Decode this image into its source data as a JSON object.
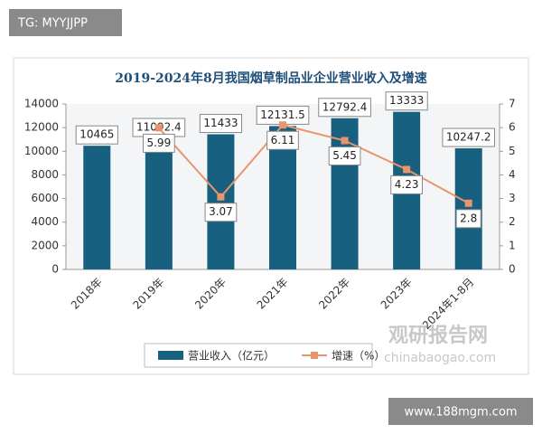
{
  "chart_data": {
    "type": "bar_line",
    "title": "2019-2024年8月我国烟草制品业企业营业收入及增速",
    "categories": [
      "2018年",
      "2019年",
      "2020年",
      "2021年",
      "2022年",
      "2023年",
      "2024年1-8月"
    ],
    "series": [
      {
        "name": "营业收入（亿元）",
        "type": "bar",
        "color": "#17607f",
        "values": [
          10465,
          11092.4,
          11433,
          12131.5,
          12792.4,
          13333,
          10247.2
        ]
      },
      {
        "name": "增速（%）",
        "type": "line",
        "axis": "y2",
        "color": "#e8956b",
        "values": [
          null,
          5.99,
          3.07,
          6.11,
          5.45,
          4.23,
          2.8
        ]
      }
    ],
    "ylim": [
      0,
      14000
    ],
    "yticks": [
      0,
      2000,
      4000,
      6000,
      8000,
      10000,
      12000,
      14000
    ],
    "y2lim": [
      0,
      7
    ],
    "y2ticks": [
      0,
      1,
      2,
      3,
      4,
      5,
      6,
      7
    ],
    "grid": false,
    "legend": "bottom"
  },
  "watermarks": {
    "top_left": "TG: MYYJJPP",
    "brand": "观研报告网",
    "site": "chinabaogao.com",
    "bottom_right": "www.188mgm.com"
  }
}
